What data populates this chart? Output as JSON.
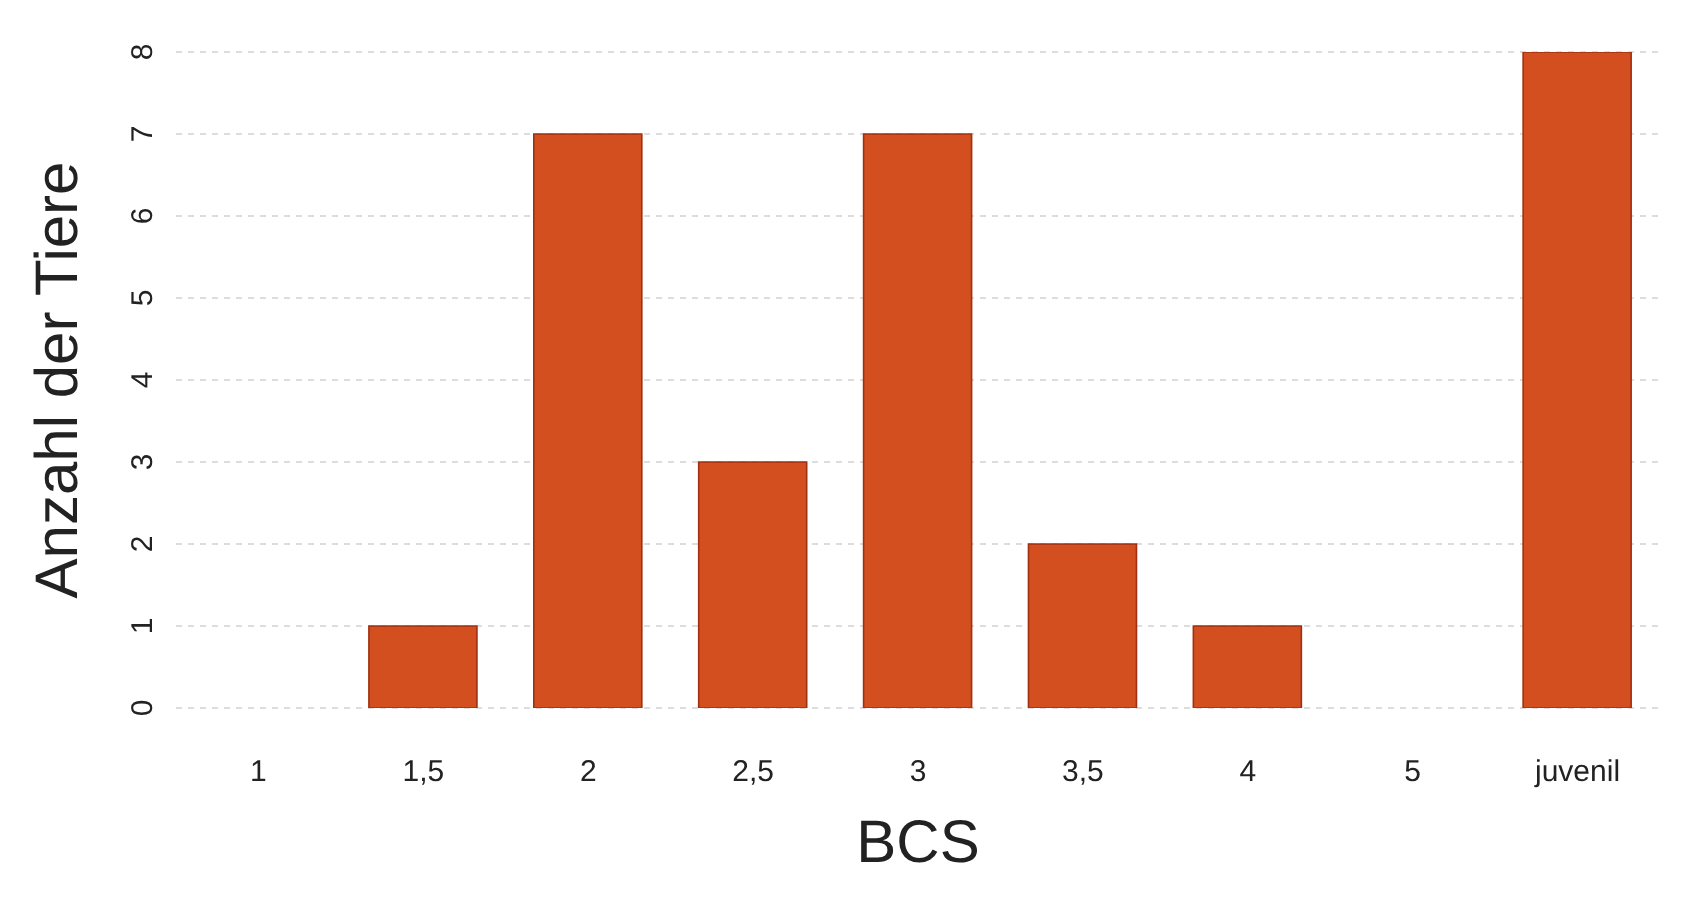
{
  "chart_data": {
    "type": "bar",
    "xlabel": "BCS",
    "ylabel": "Anzahl der Tiere",
    "categories": [
      "1",
      "1,5",
      "2",
      "2,5",
      "3",
      "3,5",
      "4",
      "5",
      "juvenil"
    ],
    "values": [
      0,
      1,
      7,
      3,
      7,
      2,
      1,
      0,
      8
    ],
    "color": "#d44f1f",
    "ylim": [
      0,
      8
    ],
    "yticks": [
      0,
      1,
      2,
      3,
      4,
      5,
      6,
      7,
      8
    ],
    "grid": "y"
  }
}
